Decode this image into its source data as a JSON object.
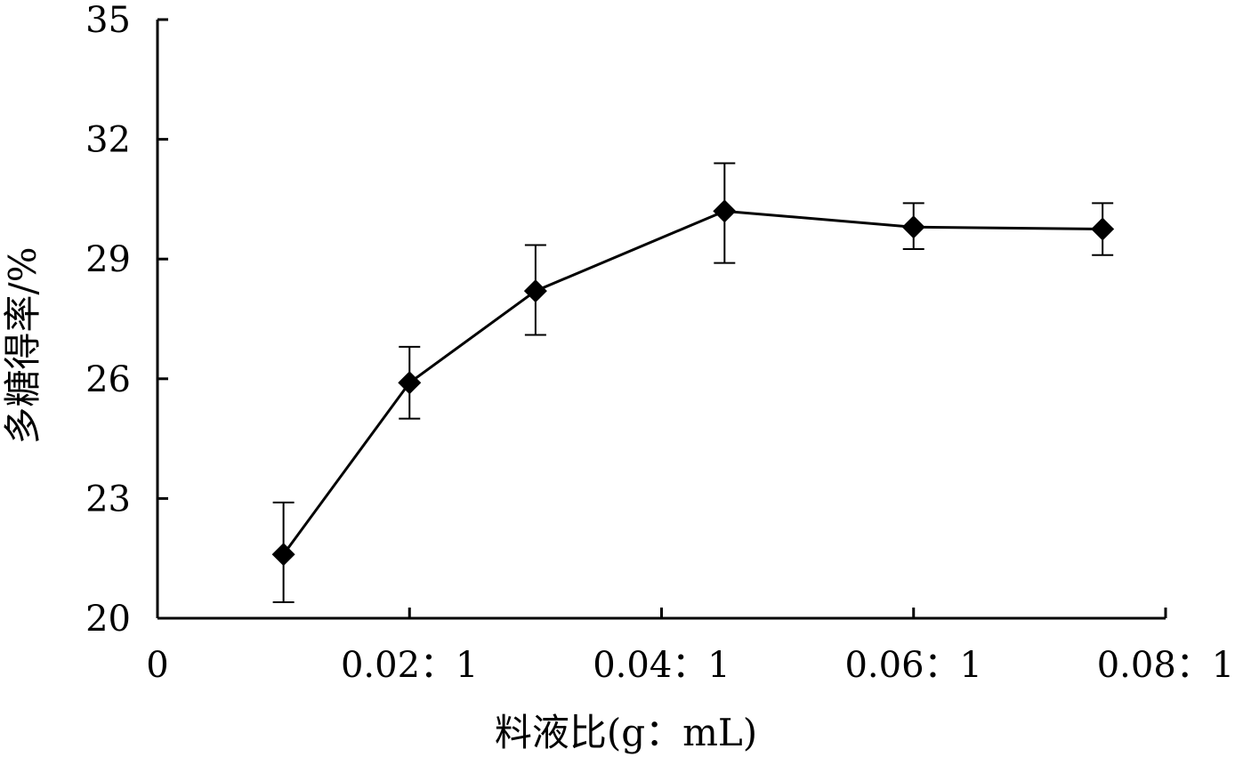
{
  "chart_data": {
    "type": "line",
    "xlabel": "料液比(g：mL)",
    "ylabel": "多糖得率/%",
    "xlim": [
      0,
      0.08
    ],
    "ylim": [
      20,
      35
    ],
    "x_ticks": [
      {
        "value": 0,
        "label": "0"
      },
      {
        "value": 0.02,
        "label": "0.02：1"
      },
      {
        "value": 0.04,
        "label": "0.04：1"
      },
      {
        "value": 0.06,
        "label": "0.06：1"
      },
      {
        "value": 0.08,
        "label": "0.08：1"
      }
    ],
    "y_ticks": [
      {
        "value": 20,
        "label": "20"
      },
      {
        "value": 23,
        "label": "23"
      },
      {
        "value": 26,
        "label": "26"
      },
      {
        "value": 29,
        "label": "29"
      },
      {
        "value": 32,
        "label": "32"
      },
      {
        "value": 35,
        "label": "35"
      }
    ],
    "series": [
      {
        "x": [
          0.01,
          0.02,
          0.03,
          0.045,
          0.06,
          0.075
        ],
        "y": [
          21.6,
          25.9,
          28.2,
          30.2,
          29.8,
          29.75
        ],
        "err_low": [
          20.4,
          25.0,
          27.1,
          28.9,
          29.25,
          29.1
        ],
        "err_high": [
          22.9,
          26.8,
          29.35,
          31.4,
          30.4,
          30.4
        ],
        "marker": "diamond",
        "color": "#000000"
      }
    ],
    "grid": false,
    "legend": "none"
  }
}
